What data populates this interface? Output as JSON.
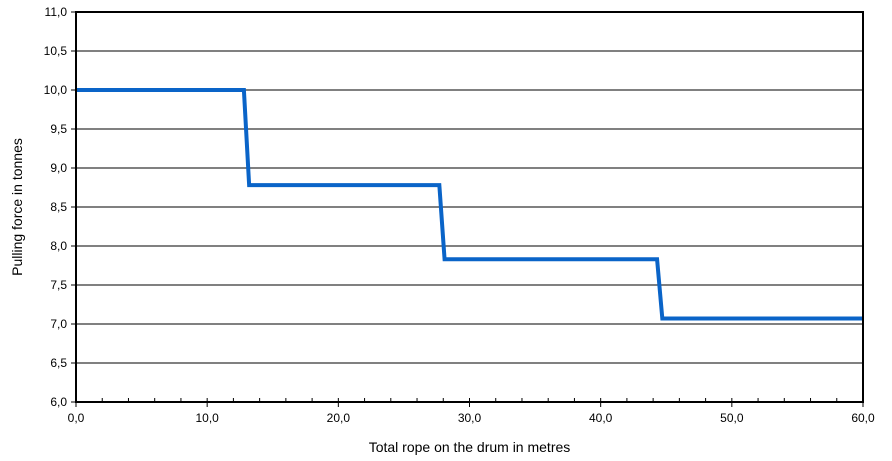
{
  "chart_data": {
    "type": "line",
    "title": "",
    "xlabel": "Total rope on the drum in metres",
    "ylabel": "Pulling force in tonnes",
    "xlim": [
      0,
      60
    ],
    "ylim": [
      6.0,
      11.0
    ],
    "x_ticks": [
      0,
      10,
      20,
      30,
      40,
      50,
      60
    ],
    "x_tick_labels": [
      "0,0",
      "10,0",
      "20,0",
      "30,0",
      "40,0",
      "50,0",
      "60,0"
    ],
    "x_minor_step": 2,
    "y_ticks": [
      6.0,
      6.5,
      7.0,
      7.5,
      8.0,
      8.5,
      9.0,
      9.5,
      10.0,
      10.5,
      11.0
    ],
    "y_tick_labels": [
      "6,0",
      "6,5",
      "7,0",
      "7,5",
      "8,0",
      "8,5",
      "9,0",
      "9,5",
      "10,0",
      "10,5",
      "11,0"
    ],
    "grid": "horizontal",
    "legend": "none",
    "series": [
      {
        "color": "#0a64c8",
        "points": [
          [
            0.0,
            10.0
          ],
          [
            12.8,
            10.0
          ],
          [
            13.2,
            8.78
          ],
          [
            27.7,
            8.78
          ],
          [
            28.1,
            7.83
          ],
          [
            44.3,
            7.83
          ],
          [
            44.7,
            7.07
          ],
          [
            60.0,
            7.07
          ]
        ]
      }
    ]
  }
}
